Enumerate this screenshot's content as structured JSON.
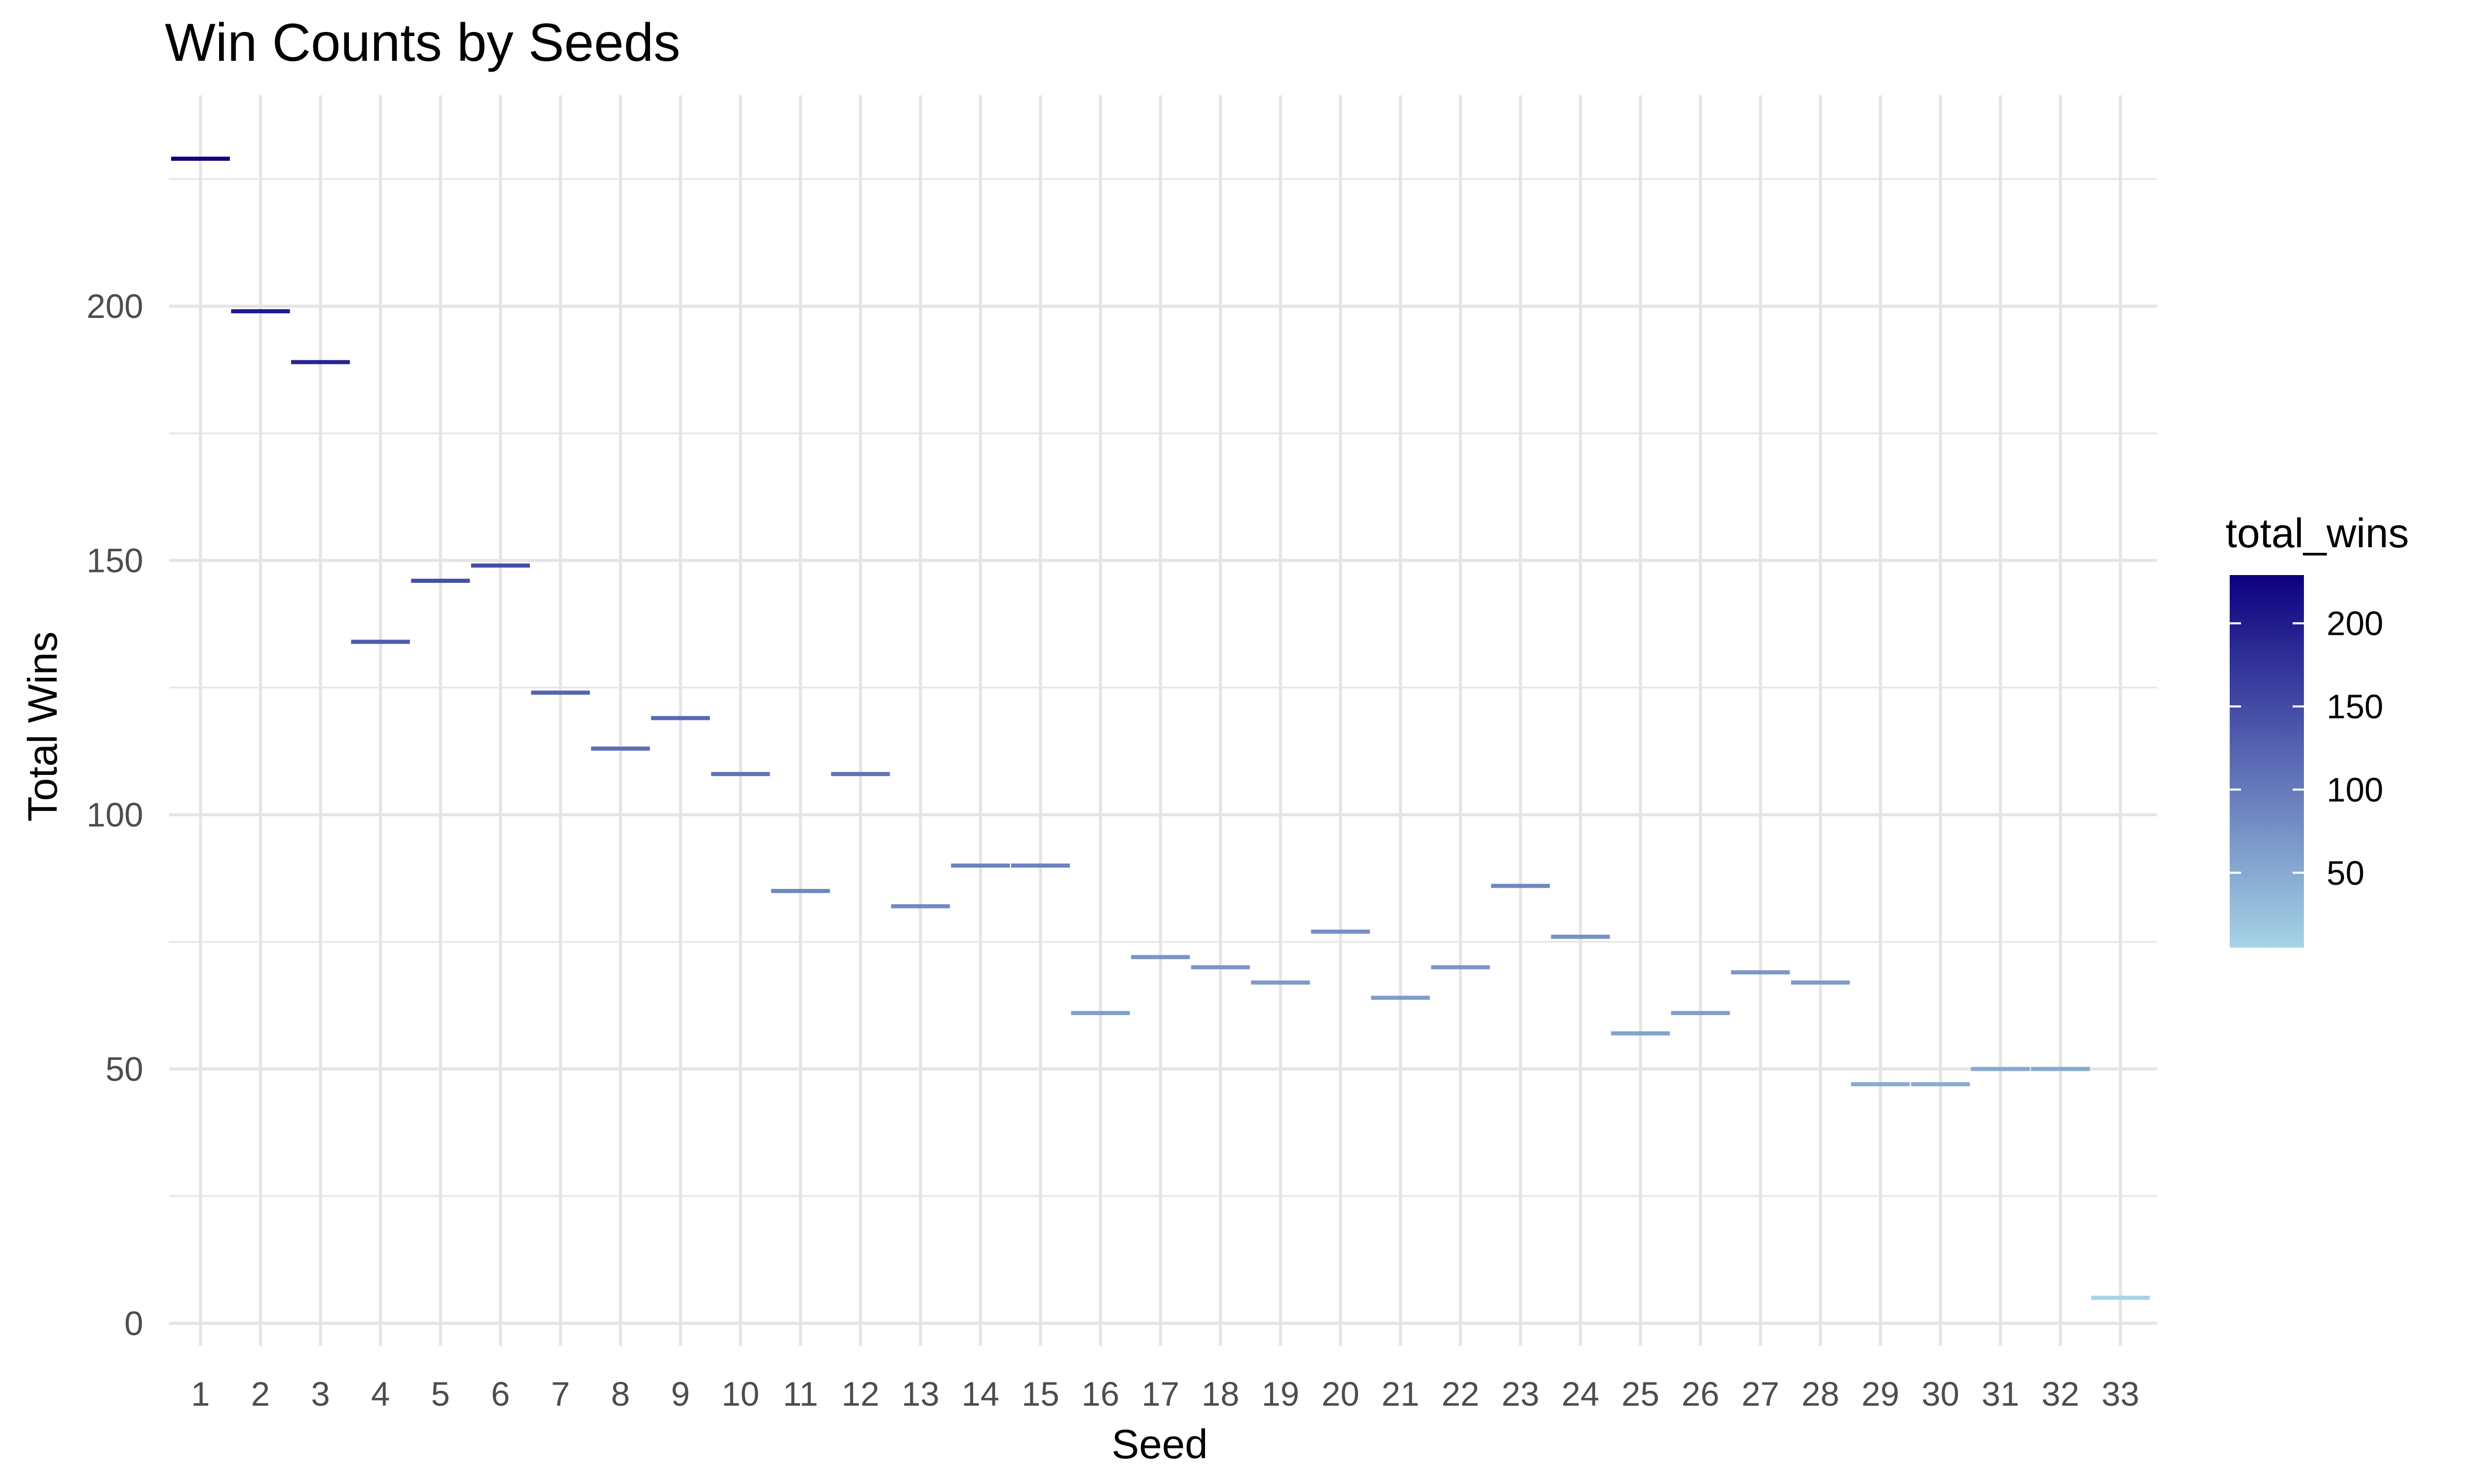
{
  "chart_data": {
    "type": "bar",
    "title": "Win Counts by Seeds",
    "xlabel": "Seed",
    "ylabel": "Total Wins",
    "x": [
      1,
      2,
      3,
      4,
      5,
      6,
      7,
      8,
      9,
      10,
      11,
      12,
      13,
      14,
      15,
      16,
      17,
      18,
      19,
      20,
      21,
      22,
      23,
      24,
      25,
      26,
      27,
      28,
      29,
      30,
      31,
      32,
      33
    ],
    "values": [
      229,
      199,
      189,
      134,
      146,
      149,
      124,
      113,
      119,
      108,
      85,
      108,
      82,
      90,
      90,
      61,
      72,
      70,
      67,
      77,
      64,
      70,
      86,
      76,
      57,
      61,
      69,
      67,
      47,
      47,
      50,
      50,
      5
    ],
    "ylim": [
      0,
      232
    ],
    "y_ticks": [
      0,
      50,
      100,
      150,
      200
    ],
    "grid": true,
    "marks": "horizontal segment per seed",
    "legend": {
      "title": "total_wins",
      "position": "right",
      "ticks": [
        50,
        100,
        150,
        200
      ],
      "range": [
        5,
        229
      ],
      "color_low": "#a6d4e6",
      "color_high": "#0d0080"
    },
    "colors": {
      "grid": "#e5e5e5",
      "background": "#ffffff"
    }
  }
}
